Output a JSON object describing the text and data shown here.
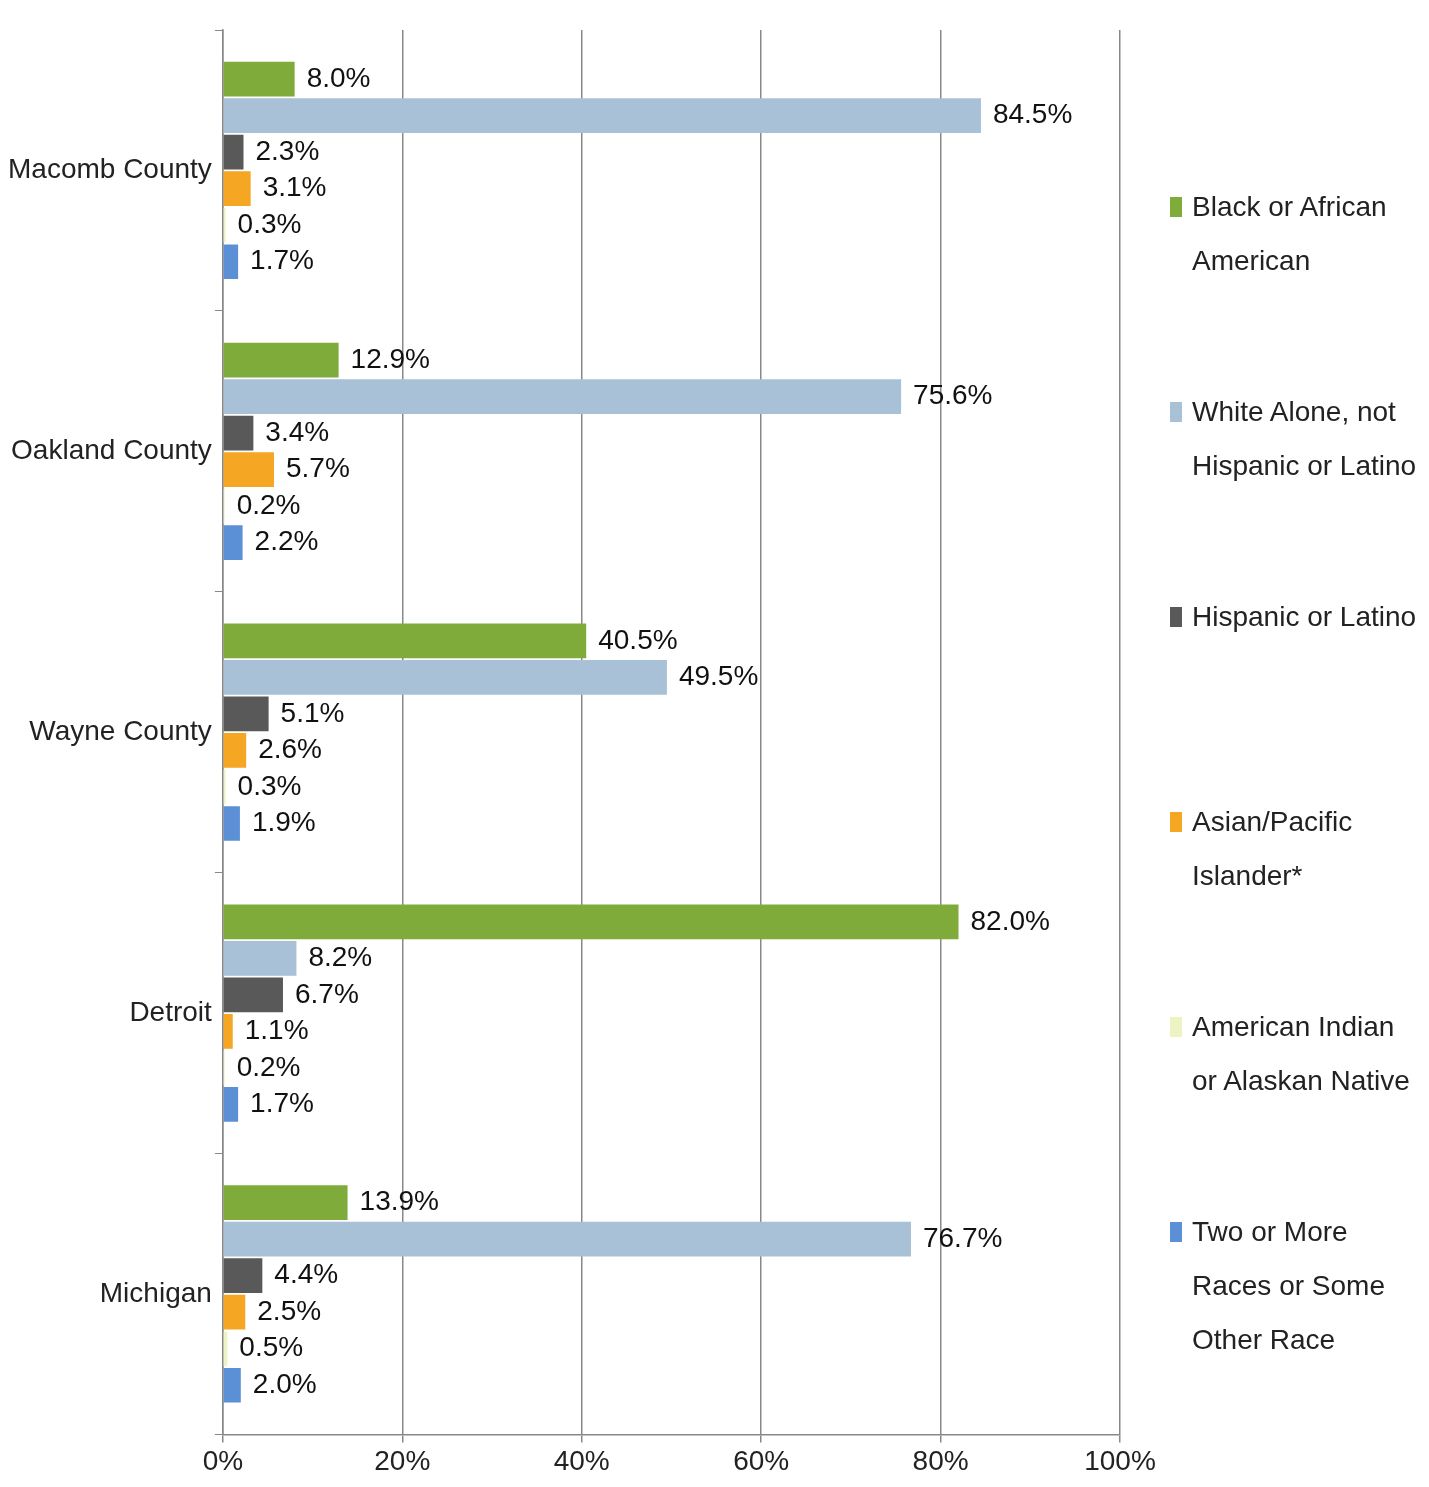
{
  "chart_data": {
    "type": "bar",
    "orientation": "horizontal",
    "categories": [
      "Macomb County",
      "Oakland County",
      "Wayne County",
      "Detroit",
      "Michigan"
    ],
    "series": [
      {
        "name": "Black or African American",
        "color": "#7fab3a",
        "values": [
          8.0,
          12.9,
          40.5,
          82.0,
          13.9
        ],
        "value_labels": [
          "8.0%",
          "12.9%",
          "40.5%",
          "82.0%",
          "13.9%"
        ]
      },
      {
        "name": "White Alone, not Hispanic or Latino",
        "color": "#a9c1d6",
        "values": [
          84.5,
          75.6,
          49.5,
          8.2,
          76.7
        ],
        "value_labels": [
          "84.5%",
          "75.6%",
          "49.5%",
          "8.2%",
          "76.7%"
        ]
      },
      {
        "name": "Hispanic or Latino",
        "color": "#595959",
        "values": [
          2.3,
          3.4,
          5.1,
          6.7,
          4.4
        ],
        "value_labels": [
          "2.3%",
          "3.4%",
          "5.1%",
          "6.7%",
          "4.4%"
        ]
      },
      {
        "name": "Asian/Pacific Islander*",
        "color": "#f5a623",
        "values": [
          3.1,
          5.7,
          2.6,
          1.1,
          2.5
        ],
        "value_labels": [
          "3.1%",
          "5.7%",
          "2.6%",
          "1.1%",
          "2.5%"
        ]
      },
      {
        "name": "American Indian or Alaskan Native",
        "color": "#eef3c4",
        "values": [
          0.3,
          0.2,
          0.3,
          0.2,
          0.5
        ],
        "value_labels": [
          "0.3%",
          "0.2%",
          "0.3%",
          "0.2%",
          "0.5%"
        ]
      },
      {
        "name": "Two or More Races or Some Other Race",
        "color": "#5b8fd6",
        "values": [
          1.7,
          2.2,
          1.9,
          1.7,
          2.0
        ],
        "value_labels": [
          "1.7%",
          "2.2%",
          "1.9%",
          "1.7%",
          "2.0%"
        ]
      }
    ],
    "xlim": [
      0,
      100
    ],
    "xticks": [
      {
        "value": 0,
        "label": "0%"
      },
      {
        "value": 20,
        "label": "20%"
      },
      {
        "value": 40,
        "label": "40%"
      },
      {
        "value": 60,
        "label": "60%"
      },
      {
        "value": 80,
        "label": "80%"
      },
      {
        "value": 100,
        "label": "100%"
      }
    ],
    "grid": "x",
    "legend": "right"
  }
}
